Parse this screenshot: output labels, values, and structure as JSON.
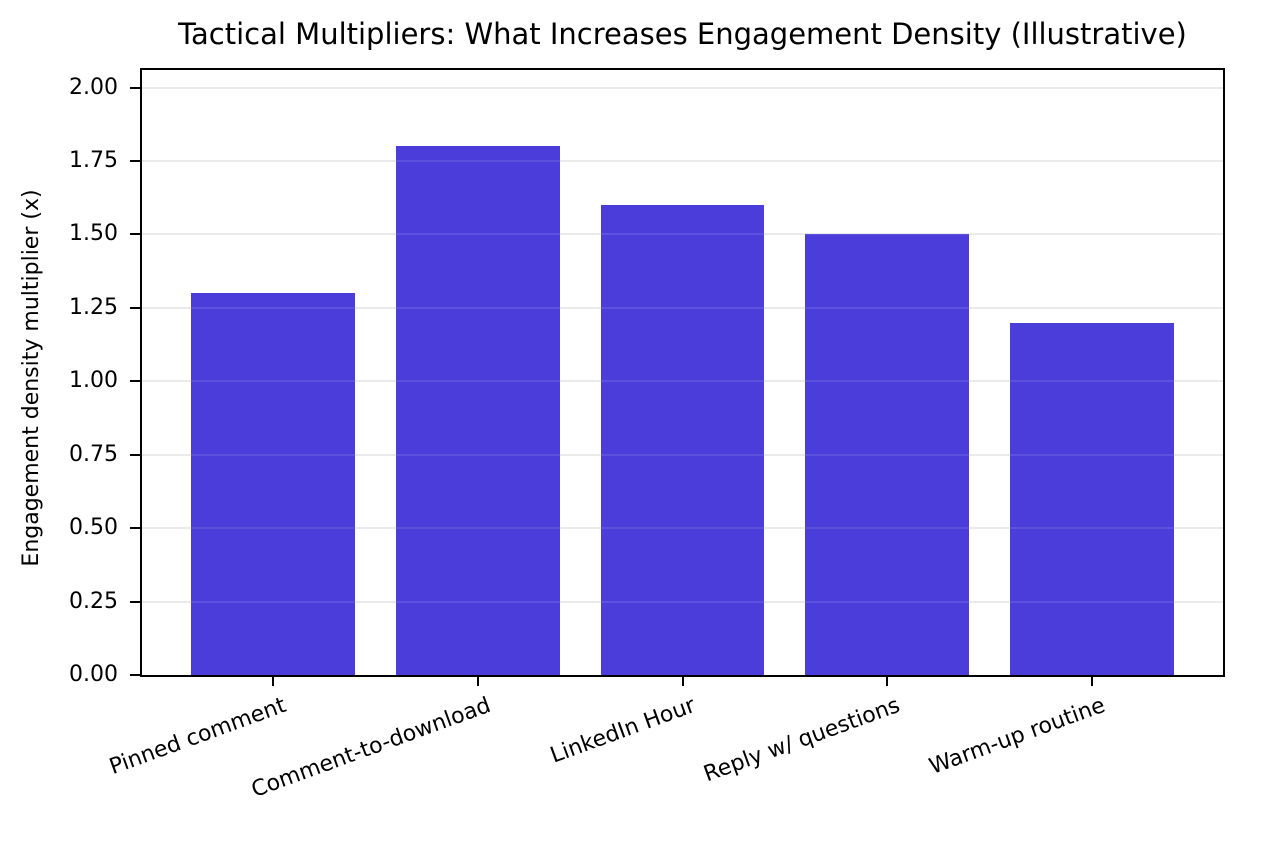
{
  "chart_data": {
    "type": "bar",
    "title": "Tactical Multipliers: What Increases Engagement Density (Illustrative)",
    "ylabel": "Engagement density multiplier (x)",
    "xlabel": "",
    "categories": [
      "Pinned comment",
      "Comment-to-download",
      "LinkedIn Hour",
      "Reply w/ questions",
      "Warm-up routine"
    ],
    "values": [
      1.3,
      1.8,
      1.6,
      1.5,
      1.2
    ],
    "ylim": [
      0,
      2.06
    ],
    "yticks": [
      0,
      0.25,
      0.5,
      0.75,
      1,
      1.25,
      1.5,
      1.75,
      2
    ],
    "ytick_labels": [
      "0.00",
      "0.25",
      "0.50",
      "0.75",
      "1.00",
      "1.25",
      "1.50",
      "1.75",
      "2.00"
    ],
    "xtick_rotation_deg": 20,
    "bar_color": "#4a3dd9",
    "grid": true,
    "grid_color": "#e8e8e8",
    "background_color": "#ffffff",
    "text_color": "#000000",
    "legend": null
  }
}
